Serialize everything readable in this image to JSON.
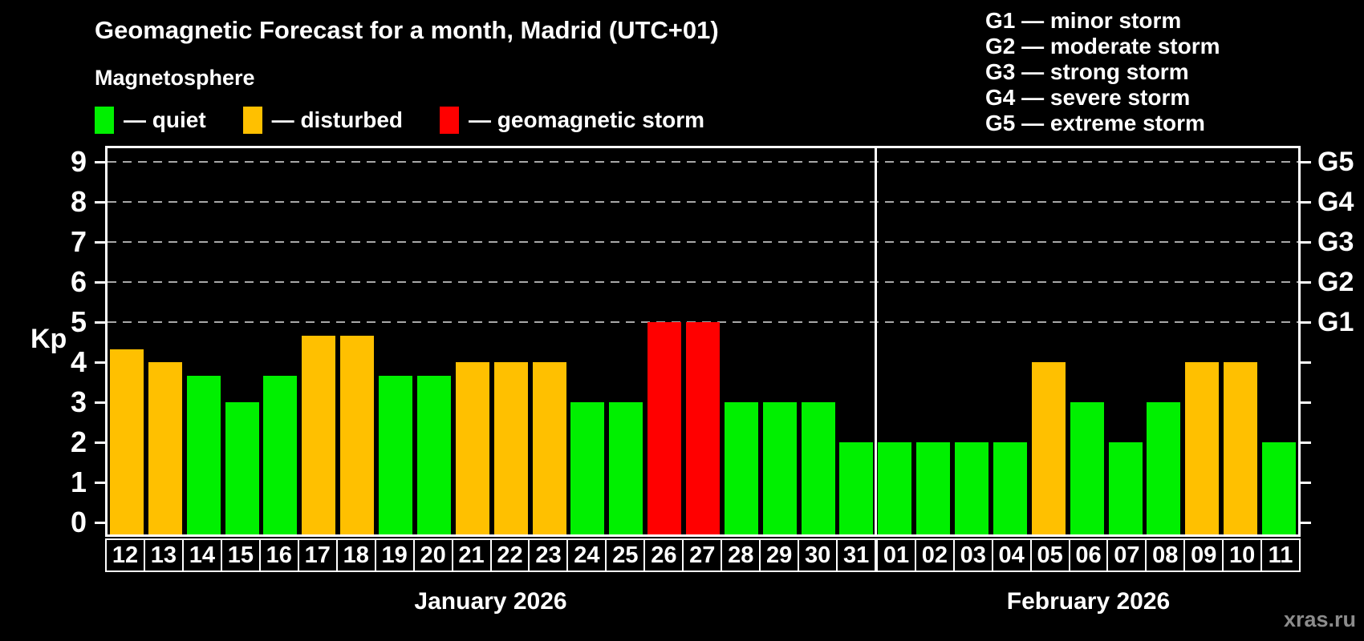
{
  "title": "Geomagnetic Forecast for a month, Madrid (UTC+01)",
  "subtitle": "Magnetosphere",
  "legend": [
    {
      "status": "quiet",
      "label": "— quiet"
    },
    {
      "status": "disturbed",
      "label": "— disturbed"
    },
    {
      "status": "storm",
      "label": "— geomagnetic storm"
    }
  ],
  "g_legend": [
    "G1 — minor storm",
    "G2 — moderate storm",
    "G3 — strong storm",
    "G4 — severe storm",
    "G5 — extreme storm"
  ],
  "colors": {
    "quiet": "#00f000",
    "disturbed": "#ffc000",
    "storm": "#ff0000",
    "axis": "#ffffff",
    "grid": "#a8a8a8",
    "background": "#000000",
    "watermark": "#8c8c8c"
  },
  "months": [
    {
      "label": "January 2026",
      "days": [
        "12",
        "13",
        "14",
        "15",
        "16",
        "17",
        "18",
        "19",
        "20",
        "21",
        "22",
        "23",
        "24",
        "25",
        "26",
        "27",
        "28",
        "29",
        "30",
        "31"
      ]
    },
    {
      "label": "February 2026",
      "days": [
        "01",
        "02",
        "03",
        "04",
        "05",
        "06",
        "07",
        "08",
        "09",
        "10",
        "11"
      ]
    }
  ],
  "chart_data": {
    "type": "bar",
    "title": "Geomagnetic Forecast for a month, Madrid (UTC+01)",
    "xlabel": "",
    "ylabel": "Kp",
    "ylim": [
      0,
      9
    ],
    "y_ticks": [
      0,
      1,
      2,
      3,
      4,
      5,
      6,
      7,
      8,
      9
    ],
    "gridline_levels": [
      5,
      6,
      7,
      8,
      9
    ],
    "grid": "dashed horizontal at G-storm levels only",
    "legend_position": "top-left and top-right",
    "right_axis_labels": [
      {
        "kp": 5,
        "label": "G1"
      },
      {
        "kp": 6,
        "label": "G2"
      },
      {
        "kp": 7,
        "label": "G3"
      },
      {
        "kp": 8,
        "label": "G4"
      },
      {
        "kp": 9,
        "label": "G5"
      }
    ],
    "month_split_index": 20,
    "categories": [
      "Jan 12",
      "Jan 13",
      "Jan 14",
      "Jan 15",
      "Jan 16",
      "Jan 17",
      "Jan 18",
      "Jan 19",
      "Jan 20",
      "Jan 21",
      "Jan 22",
      "Jan 23",
      "Jan 24",
      "Jan 25",
      "Jan 26",
      "Jan 27",
      "Jan 28",
      "Jan 29",
      "Jan 30",
      "Jan 31",
      "Feb 01",
      "Feb 02",
      "Feb 03",
      "Feb 04",
      "Feb 05",
      "Feb 06",
      "Feb 07",
      "Feb 08",
      "Feb 09",
      "Feb 10",
      "Feb 11"
    ],
    "values": [
      4.33,
      4,
      3.67,
      3,
      3.67,
      4.67,
      4.67,
      3.67,
      3.67,
      4,
      4,
      4,
      3,
      3,
      5,
      5,
      3,
      3,
      3,
      2,
      2,
      2,
      2,
      2,
      4,
      3,
      2,
      3,
      4,
      4,
      2
    ],
    "statuses": [
      "disturbed",
      "disturbed",
      "quiet",
      "quiet",
      "quiet",
      "disturbed",
      "disturbed",
      "quiet",
      "quiet",
      "disturbed",
      "disturbed",
      "disturbed",
      "quiet",
      "quiet",
      "storm",
      "storm",
      "quiet",
      "quiet",
      "quiet",
      "quiet",
      "quiet",
      "quiet",
      "quiet",
      "quiet",
      "disturbed",
      "quiet",
      "quiet",
      "quiet",
      "disturbed",
      "disturbed",
      "quiet"
    ]
  },
  "watermark": "xras.ru"
}
